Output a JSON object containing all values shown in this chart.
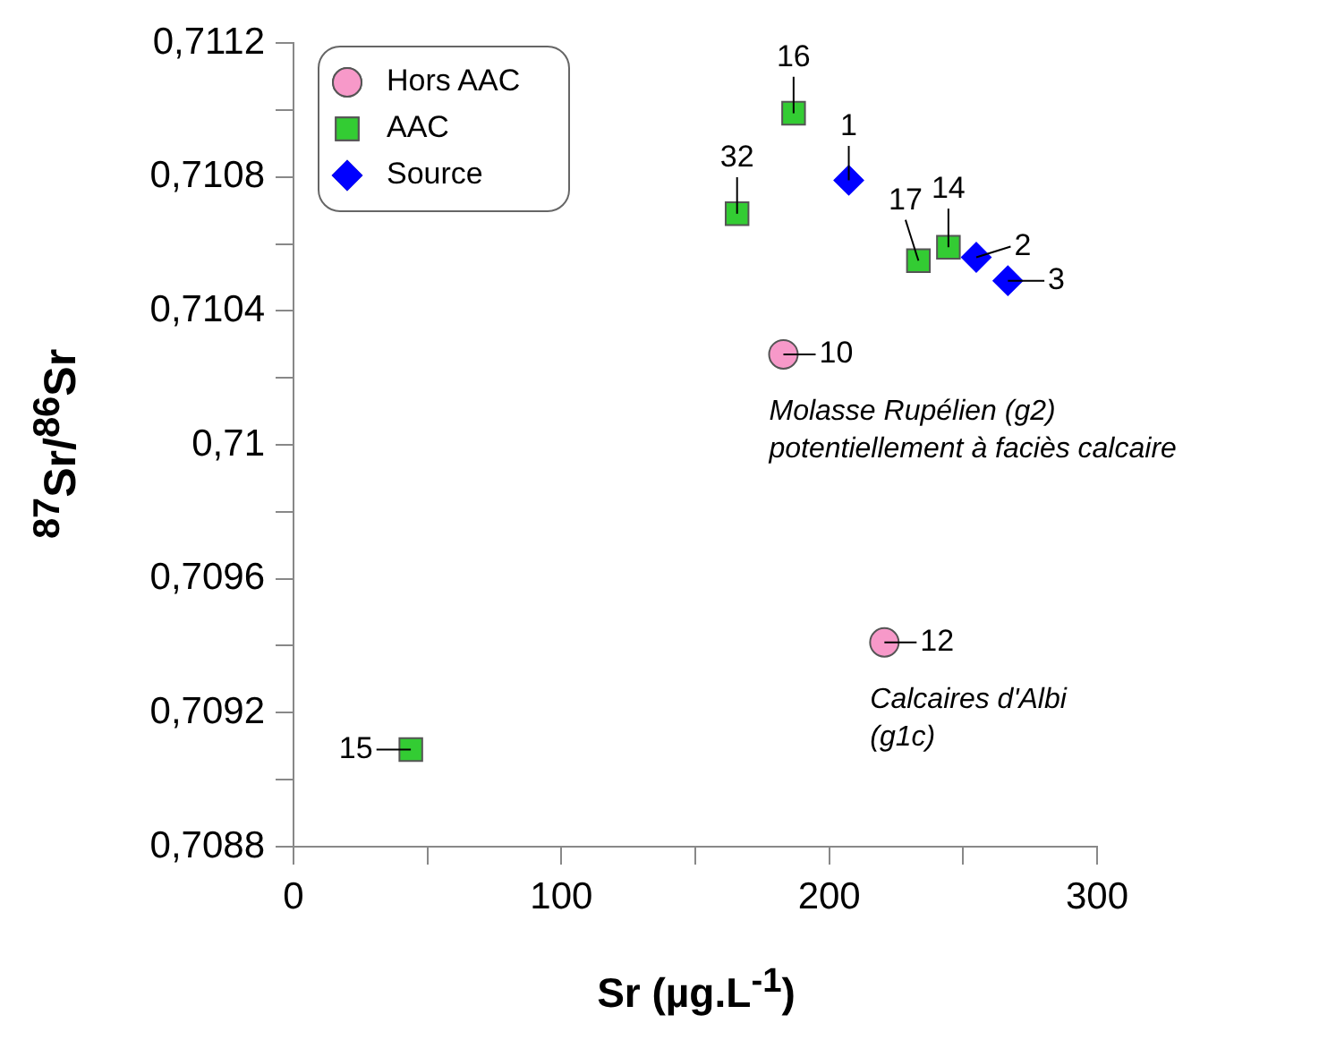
{
  "chart_data": {
    "type": "scatter",
    "xlabel": "Sr (µg.L$^{-1}$)",
    "ylabel": "$^{87}$Sr/$^{86}$Sr",
    "xlim": [
      0,
      300
    ],
    "ylim": [
      0.7088,
      0.7112
    ],
    "xticks": [
      0,
      {
        "value": 50,
        "label": null
      },
      100,
      {
        "value": 150,
        "label": null
      },
      200,
      {
        "value": 250,
        "label": null
      },
      300
    ],
    "yticks": [
      {
        "value": 0.7088,
        "label": "0,7088"
      },
      {
        "value": 0.709,
        "label": null
      },
      {
        "value": 0.7092,
        "label": "0,7092"
      },
      {
        "value": 0.7094,
        "label": null
      },
      {
        "value": 0.7096,
        "label": "0,7096"
      },
      {
        "value": 0.7098,
        "label": null
      },
      {
        "value": 0.71,
        "label": "0,71"
      },
      {
        "value": 0.7102,
        "label": null
      },
      {
        "value": 0.7104,
        "label": "0,7104"
      },
      {
        "value": 0.7106,
        "label": null
      },
      {
        "value": 0.7108,
        "label": "0,7108"
      },
      {
        "value": 0.711,
        "label": null
      },
      {
        "value": 0.7112,
        "label": "0,7112"
      }
    ],
    "grid": false,
    "legend": "top left",
    "series": [
      {
        "name": "Hors AAC",
        "color": "#f799c9",
        "marker": "circle",
        "x": [
          182.9,
          220.6
        ],
        "values": [
          0.71027,
          0.70941
        ]
      },
      {
        "name": "AAC",
        "color": "#33cc33",
        "marker": "square",
        "x": [
          186.7,
          165.6,
          233.3,
          244.5,
          43.8
        ],
        "values": [
          0.71099,
          0.71069,
          0.71055,
          0.71059,
          0.70909
        ]
      },
      {
        "name": "Source",
        "color": "#0000ff",
        "marker": "diamond",
        "x": [
          207.3,
          254.9,
          266.7
        ],
        "values": [
          0.71079,
          0.71056,
          0.71049
        ]
      }
    ],
    "annotations": [
      {
        "text": "10",
        "x": 182.9,
        "y": 0.71027
      },
      {
        "text": "12",
        "x": 220.6,
        "y": 0.70941
      },
      {
        "text": "16",
        "x": 186.7,
        "y": 0.71099
      },
      {
        "text": "32",
        "x": 165.6,
        "y": 0.71069
      },
      {
        "text": "17",
        "x": 233.3,
        "y": 0.71055
      },
      {
        "text": "14",
        "x": 244.5,
        "y": 0.71059
      },
      {
        "text": "15",
        "x": 43.8,
        "y": 0.70909
      },
      {
        "text": "1",
        "x": 207.3,
        "y": 0.71079
      },
      {
        "text": "2",
        "x": 254.9,
        "y": 0.71056
      },
      {
        "text": "3",
        "x": 266.7,
        "y": 0.71049
      },
      {
        "text": "Molasse Rupélien (g2)\npotentiellement à faciès calcaire",
        "x": 182.9,
        "y": 0.71027
      },
      {
        "text": "Calcaires d'Albi\n(g1c)",
        "x": 220.6,
        "y": 0.70941
      }
    ]
  }
}
